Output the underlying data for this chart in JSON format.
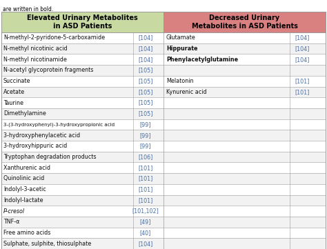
{
  "title_text": "are written in bold.",
  "header_left": "Elevated Urinary Metabolites\nin ASD Patients",
  "header_right": "Decreased Urinary\nMetabolites in ASD Patients",
  "header_left_bg": "#c8d9a2",
  "header_right_bg": "#d98080",
  "left_rows": [
    {
      "name": "N-methyl-2-pyridone-5-carboxamide",
      "ref": "[104]",
      "bold": false,
      "italic": false
    },
    {
      "name": "N-methyl nicotinic acid",
      "ref": "[104]",
      "bold": false,
      "italic": false
    },
    {
      "name": "N-methyl nicotinamide",
      "ref": "[104]",
      "bold": false,
      "italic": false
    },
    {
      "name": "N-acetyl glycoprotein fragments",
      "ref": "[105]",
      "bold": false,
      "italic": false
    },
    {
      "name": "Succinate",
      "ref": "[105]",
      "bold": false,
      "italic": false
    },
    {
      "name": "Acetate",
      "ref": "[105]",
      "bold": false,
      "italic": false
    },
    {
      "name": "Taurine",
      "ref": "[105]",
      "bold": false,
      "italic": false
    },
    {
      "name": "Dimethylamine",
      "ref": "[105]",
      "bold": false,
      "italic": false
    },
    {
      "name": "3-(3-hydroxyphenyl)-3-hydroxypropionic acid",
      "ref": "[99]",
      "bold": false,
      "italic": false
    },
    {
      "name": "3-hydroxyphenylacetic acid",
      "ref": "[99]",
      "bold": false,
      "italic": false
    },
    {
      "name": "3-hydroxyhippuric acid",
      "ref": "[99]",
      "bold": false,
      "italic": false
    },
    {
      "name": "Tryptophan degradation products",
      "ref": "[106]",
      "bold": false,
      "italic": false
    },
    {
      "name": "Xanthurenic acid",
      "ref": "[101]",
      "bold": false,
      "italic": false
    },
    {
      "name": "Quinolinic acid",
      "ref": "[101]",
      "bold": false,
      "italic": false
    },
    {
      "name": "Indolyl-3-acetic",
      "ref": "[101]",
      "bold": false,
      "italic": false
    },
    {
      "name": "Indolyl-lactate",
      "ref": "[101]",
      "bold": false,
      "italic": false
    },
    {
      "name": "P-cresol",
      "ref": "[101,102]",
      "bold": false,
      "italic": true
    },
    {
      "name": "TNF-α",
      "ref": "[49]",
      "bold": false,
      "italic": false
    },
    {
      "name": "Free amino acids",
      "ref": "[40]",
      "bold": false,
      "italic": false
    },
    {
      "name": "Sulphate, sulphite, thiosulphate",
      "ref": "[104]",
      "bold": false,
      "italic": false
    }
  ],
  "right_rows": [
    {
      "name": "Glutamate",
      "ref": "[104]",
      "bold": false
    },
    {
      "name": "Hippurate",
      "ref": "[104]",
      "bold": true
    },
    {
      "name": "Phenylacetylglutamine",
      "ref": "[104]",
      "bold": true
    },
    {
      "name": "",
      "ref": "",
      "bold": false
    },
    {
      "name": "Melatonin",
      "ref": "[101]",
      "bold": false
    },
    {
      "name": "Kynurenic acid",
      "ref": "[101]",
      "bold": false
    },
    {
      "name": "",
      "ref": "",
      "bold": false
    },
    {
      "name": "",
      "ref": "",
      "bold": false
    },
    {
      "name": "",
      "ref": "",
      "bold": false
    },
    {
      "name": "",
      "ref": "",
      "bold": false
    },
    {
      "name": "",
      "ref": "",
      "bold": false
    },
    {
      "name": "",
      "ref": "",
      "bold": false
    },
    {
      "name": "",
      "ref": "",
      "bold": false
    },
    {
      "name": "",
      "ref": "",
      "bold": false
    },
    {
      "name": "",
      "ref": "",
      "bold": false
    },
    {
      "name": "",
      "ref": "",
      "bold": false
    },
    {
      "name": "",
      "ref": "",
      "bold": false
    },
    {
      "name": "",
      "ref": "",
      "bold": false
    },
    {
      "name": "",
      "ref": "",
      "bold": false
    },
    {
      "name": "",
      "ref": "",
      "bold": false
    }
  ],
  "border_color": "#999999",
  "ref_color": "#4a6fa5",
  "text_color": "#111111",
  "font_size": 5.8,
  "header_font_size": 7.0,
  "title_font_size": 5.5
}
